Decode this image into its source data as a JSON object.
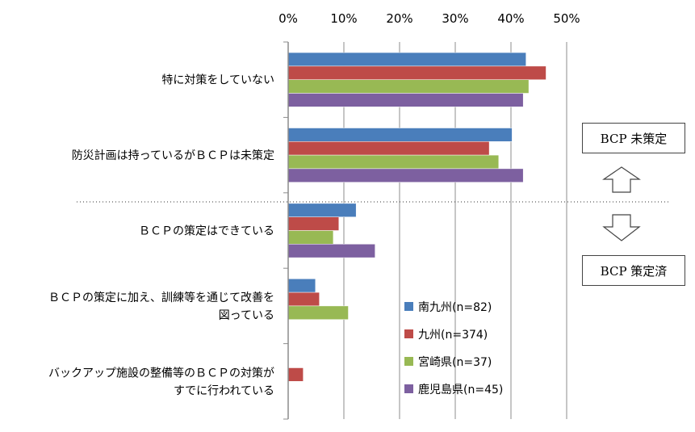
{
  "chart_data": {
    "type": "bar",
    "orientation": "horizontal",
    "x_tick_labels": [
      "0%",
      "10%",
      "20%",
      "30%",
      "40%",
      "50%"
    ],
    "xlim": [
      0,
      50
    ],
    "categories": [
      [
        "特に対策をしていない"
      ],
      [
        "防災計画は持っているがＢＣＰは未策定"
      ],
      [
        "ＢＣＰの策定はできている"
      ],
      [
        "ＢＣＰの策定に加え、訓練等を通じて改善を",
        "図っている"
      ],
      [
        "バックアップ施設の整備等のＢＣＰの対策が",
        "すでに行われている"
      ]
    ],
    "series": [
      {
        "name": "南九州(n=82)",
        "color": "#4a7ebb",
        "values": [
          42.7,
          40.2,
          12.2,
          4.9,
          0
        ]
      },
      {
        "name": "九州(n=374)",
        "color": "#be4b48",
        "values": [
          46.3,
          36.1,
          9.1,
          5.6,
          2.7
        ]
      },
      {
        "name": "宮崎県(n=37)",
        "color": "#98b954",
        "values": [
          43.2,
          37.8,
          8.1,
          10.8,
          0
        ]
      },
      {
        "name": "鹿児島県(n=45)",
        "color": "#7d60a0",
        "values": [
          42.2,
          42.2,
          15.6,
          0,
          0
        ]
      }
    ],
    "grid": true,
    "legend_position": "lower-right inside"
  },
  "annotations": {
    "top_label": "BCP 未策定",
    "bottom_label": "BCP 策定済"
  }
}
